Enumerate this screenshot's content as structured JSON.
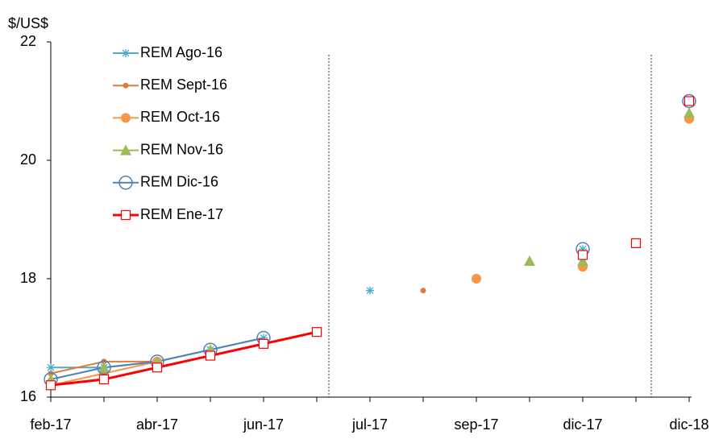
{
  "chart_data": {
    "type": "line",
    "y_label": "$/US$",
    "categories": [
      "feb-17",
      null,
      "abr-17",
      null,
      "jun-17",
      null,
      "jul-17",
      null,
      "sep-17",
      null,
      "dic-17",
      null,
      "dic-18"
    ],
    "ylim": [
      16,
      22
    ],
    "yticks": [
      16,
      18,
      20,
      22
    ],
    "series": [
      {
        "name": "REM Ago-16",
        "color": "#4bacc6",
        "marker": "asterisk",
        "values": [
          16.5,
          16.5,
          16.6,
          16.8,
          17.0,
          null,
          17.8,
          null,
          null,
          null,
          18.5,
          null,
          21.0
        ]
      },
      {
        "name": "REM Sept-16",
        "color": "#e07b39",
        "marker": "small-dot",
        "values": [
          16.4,
          16.6,
          16.6,
          null,
          null,
          null,
          null,
          17.8,
          null,
          null,
          null,
          null,
          null
        ]
      },
      {
        "name": "REM Oct-16",
        "color": "#f79646",
        "marker": "dot",
        "values": [
          16.2,
          16.4,
          16.6,
          null,
          null,
          null,
          null,
          null,
          18.0,
          null,
          18.2,
          null,
          20.7
        ]
      },
      {
        "name": "REM Nov-16",
        "color": "#9bbb59",
        "marker": "triangle",
        "values": [
          16.3,
          16.5,
          16.6,
          16.8,
          null,
          null,
          null,
          null,
          null,
          18.3,
          18.3,
          null,
          20.8
        ]
      },
      {
        "name": "REM Dic-16",
        "color": "#4f81bd",
        "marker": "circle",
        "values": [
          16.3,
          16.5,
          16.6,
          16.8,
          17.0,
          null,
          null,
          null,
          null,
          null,
          18.5,
          null,
          21.0
        ]
      },
      {
        "name": "REM Ene-17",
        "color": "#ff0000",
        "marker": "square",
        "values": [
          16.2,
          16.3,
          16.5,
          16.7,
          16.9,
          17.1,
          null,
          null,
          null,
          null,
          18.4,
          18.6,
          21.0
        ]
      }
    ]
  }
}
